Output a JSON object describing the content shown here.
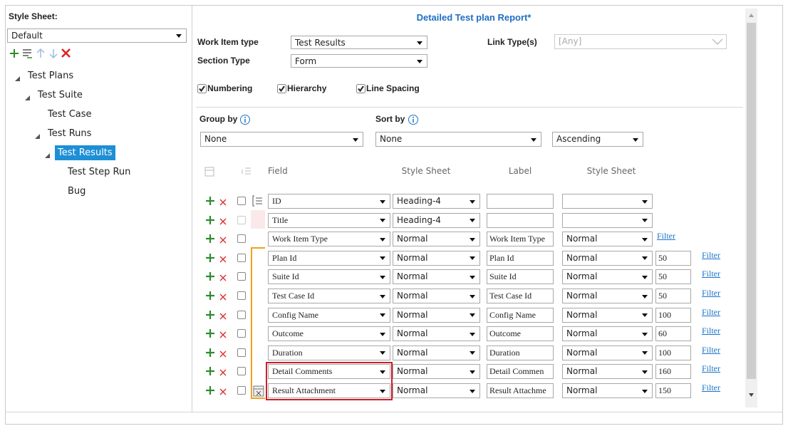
{
  "left": {
    "label": "Style Sheet:",
    "selected": "Default",
    "tree": [
      {
        "label": "Test Plans",
        "children": [
          {
            "label": "Test Suite",
            "children": [
              {
                "label": "Test Case"
              },
              {
                "label": "Test Runs",
                "children": [
                  {
                    "label": "Test Results",
                    "selected": true,
                    "children": [
                      {
                        "label": "Test Step Run"
                      },
                      {
                        "label": "Bug"
                      }
                    ]
                  }
                ]
              }
            ]
          }
        ]
      }
    ]
  },
  "right": {
    "title": "Detailed Test plan Report*",
    "work_item_type": {
      "label": "Work Item type",
      "value": "Test Results"
    },
    "link_types": {
      "label": "Link Type(s)",
      "value": "[Any]"
    },
    "section_type": {
      "label": "Section Type",
      "value": "Form"
    },
    "options": [
      {
        "label": "Numbering",
        "checked": true
      },
      {
        "label": "Hierarchy",
        "checked": true
      },
      {
        "label": "Line Spacing",
        "checked": true
      }
    ],
    "group_by": {
      "label": "Group by",
      "value": "None"
    },
    "sort_by": {
      "label": "Sort by",
      "value": "None",
      "order": "Ascending"
    },
    "table": {
      "headers": [
        "Field",
        "Style Sheet",
        "Label",
        "Style Sheet"
      ],
      "rows": [
        {
          "field": "ID",
          "style": "Heading-4"
        },
        {
          "field": "Title",
          "style": "Heading-4"
        },
        {
          "field": "Work Item Type",
          "style": "Normal",
          "label": "Work Item Type",
          "label_style": "Normal",
          "filter": "Filter"
        },
        {
          "field": "Plan Id",
          "style": "Normal",
          "label": "Plan Id",
          "label_style": "Normal",
          "width": 50,
          "filter": "Filter"
        },
        {
          "field": "Suite Id",
          "style": "Normal",
          "label": "Suite Id",
          "label_style": "Normal",
          "width": 50,
          "filter": "Filter"
        },
        {
          "field": "Test Case Id",
          "style": "Normal",
          "label": "Test Case Id",
          "label_style": "Normal",
          "width": 50,
          "filter": "Filter"
        },
        {
          "field": "Config Name",
          "style": "Normal",
          "label": "Config Name",
          "label_style": "Normal",
          "width": 100,
          "filter": "Filter"
        },
        {
          "field": "Outcome",
          "style": "Normal",
          "label": "Outcome",
          "label_style": "Normal",
          "width": 60,
          "filter": "Filter"
        },
        {
          "field": "Duration",
          "style": "Normal",
          "label": "Duration",
          "label_style": "Normal",
          "width": 100,
          "filter": "Filter"
        },
        {
          "field": "Detail Comments",
          "style": "Normal",
          "label": "Detail Commen",
          "label_style": "Normal",
          "width": 160,
          "filter": "Filter",
          "highlighted": true
        },
        {
          "field": "Result Attachment",
          "style": "Normal",
          "label": "Result Attachme",
          "label_style": "Normal",
          "width": 150,
          "filter": "Filter",
          "highlighted": true
        }
      ]
    }
  }
}
